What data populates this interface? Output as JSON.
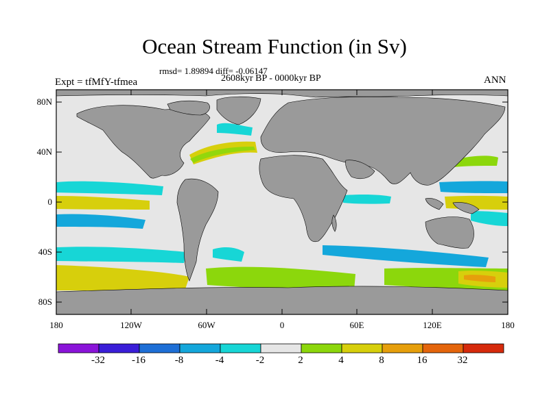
{
  "title": "Ocean Stream Function (in Sv)",
  "subtitle_stats": "rmsd= 1.89894 diff= -0.06147",
  "subtitle_period": "2608kyr BP - 0000kyr BP",
  "experiment": "Expt = tfMfY-tfmea",
  "season": "ANN",
  "lat_labels": [
    "80N",
    "40N",
    "0",
    "40S",
    "80S"
  ],
  "lon_labels": [
    "180",
    "120W",
    "60W",
    "0",
    "60E",
    "120E",
    "180"
  ],
  "colorbar": {
    "labels": [
      "-32",
      "-16",
      "-8",
      "-4",
      "-2",
      "2",
      "4",
      "8",
      "16",
      "32"
    ],
    "colors": [
      "#8a14d9",
      "#3a1ed8",
      "#1e6fd6",
      "#14a7db",
      "#17d6d6",
      "#e6e6e6",
      "#8cd70c",
      "#d7cf0c",
      "#e69f0c",
      "#e4650c",
      "#d62a0c"
    ]
  },
  "colors": {
    "land": "#9a9a9a",
    "ocean": "#e6e6e6",
    "frame": "#000000"
  }
}
